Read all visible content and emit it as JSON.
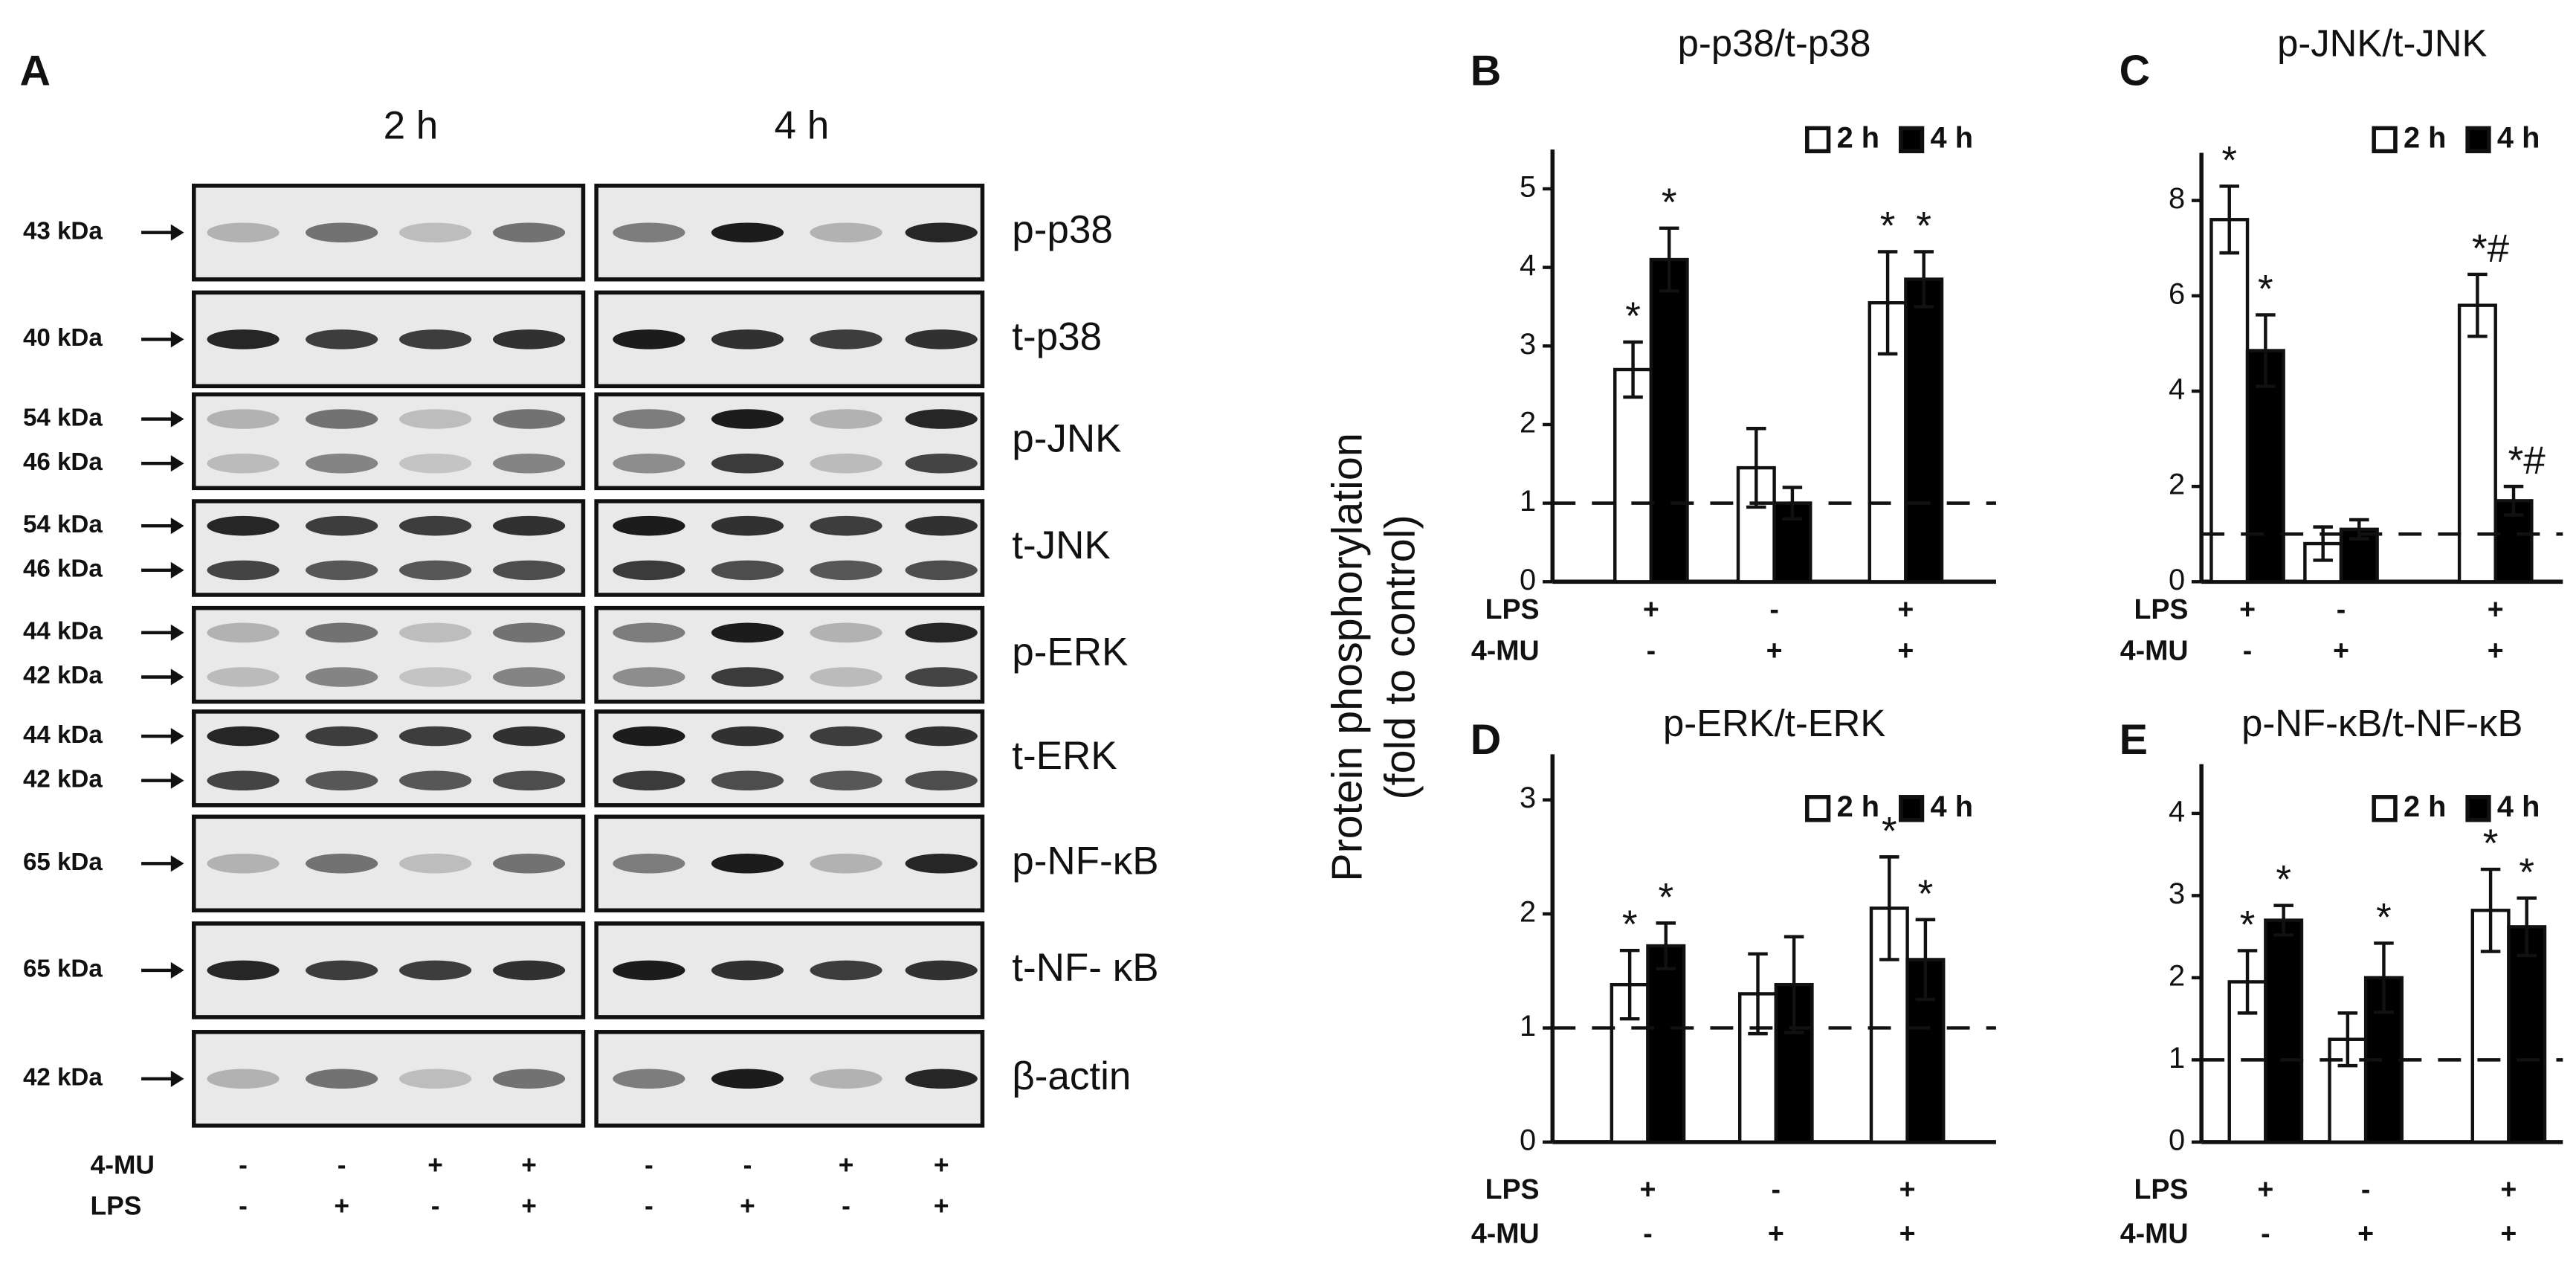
{
  "blot": {
    "label": "A",
    "time_points": [
      "2 h",
      "4 h"
    ],
    "rows": [
      {
        "markers": [
          "43 kDa"
        ],
        "name": "p-p38"
      },
      {
        "markers": [
          "40 kDa"
        ],
        "name": "t-p38"
      },
      {
        "markers": [
          "54 kDa",
          "46 kDa"
        ],
        "name": "p-JNK"
      },
      {
        "markers": [
          "54 kDa",
          "46 kDa"
        ],
        "name": "t-JNK"
      },
      {
        "markers": [
          "44 kDa",
          "42 kDa"
        ],
        "name": "p-ERK"
      },
      {
        "markers": [
          "44 kDa",
          "42 kDa"
        ],
        "name": "t-ERK"
      },
      {
        "markers": [
          "65 kDa"
        ],
        "name": "p-NF-κB"
      },
      {
        "markers": [
          "65 kDa"
        ],
        "name": "t-NF- κB"
      },
      {
        "markers": [
          "42 kDa"
        ],
        "name": "β-actin"
      }
    ],
    "treatments": [
      {
        "name": "4-MU",
        "signs": [
          "-",
          "-",
          "+",
          "+",
          "-",
          "-",
          "+",
          "+"
        ]
      },
      {
        "name": "LPS",
        "signs": [
          "-",
          "+",
          "-",
          "+",
          "-",
          "+",
          "-",
          "+"
        ]
      }
    ]
  },
  "y_axis_label": [
    "Protein phosphorylation",
    "(fold to control)"
  ],
  "chart_data": [
    {
      "type": "bar",
      "label": "B",
      "title": "p-p38/t-p38",
      "treatments": [
        {
          "name": "LPS",
          "signs": [
            "+",
            "-",
            "+"
          ]
        },
        {
          "name": "4-MU",
          "signs": [
            "-",
            "+",
            "+"
          ]
        }
      ],
      "series": [
        {
          "name": "2 h",
          "color": "#ffffff",
          "values": [
            2.7,
            1.45,
            3.55
          ],
          "errors": [
            0.35,
            0.5,
            0.65
          ],
          "sig": [
            "*",
            null,
            "*"
          ]
        },
        {
          "name": "4 h",
          "color": "#000000",
          "values": [
            4.1,
            1.0,
            3.85
          ],
          "errors": [
            0.4,
            0.2,
            0.35
          ],
          "sig": [
            "*",
            null,
            "*"
          ]
        }
      ],
      "ylim": [
        0,
        5.5
      ],
      "yticks": [
        0,
        1,
        2,
        3,
        4,
        5
      ],
      "ref_line": 1,
      "legend": "upper right",
      "grid": false
    },
    {
      "type": "bar",
      "label": "C",
      "title": "p-JNK/t-JNK",
      "treatments": [
        {
          "name": "LPS",
          "signs": [
            "+",
            "-",
            "+"
          ]
        },
        {
          "name": "4-MU",
          "signs": [
            "-",
            "+",
            "+"
          ]
        }
      ],
      "series": [
        {
          "name": "2 h",
          "color": "#ffffff",
          "values": [
            7.6,
            0.8,
            5.8
          ],
          "errors": [
            0.7,
            0.35,
            0.65
          ],
          "sig": [
            "*",
            null,
            "*#"
          ]
        },
        {
          "name": "4 h",
          "color": "#000000",
          "values": [
            4.85,
            1.1,
            1.7
          ],
          "errors": [
            0.75,
            0.2,
            0.3
          ],
          "sig": [
            "*",
            null,
            "*#"
          ]
        }
      ],
      "ylim": [
        0,
        9
      ],
      "yticks": [
        0,
        2,
        4,
        6,
        8
      ],
      "ref_line": 1,
      "legend": "upper right",
      "grid": false
    },
    {
      "type": "bar",
      "label": "D",
      "title": "p-ERK/t-ERK",
      "treatments": [
        {
          "name": "LPS",
          "signs": [
            "+",
            "-",
            "+"
          ]
        },
        {
          "name": "4-MU",
          "signs": [
            "-",
            "+",
            "+"
          ]
        }
      ],
      "series": [
        {
          "name": "2 h",
          "color": "#ffffff",
          "values": [
            1.38,
            1.3,
            2.05
          ],
          "errors": [
            0.3,
            0.35,
            0.45
          ],
          "sig": [
            "*",
            null,
            "*"
          ]
        },
        {
          "name": "4 h",
          "color": "#000000",
          "values": [
            1.72,
            1.38,
            1.6
          ],
          "errors": [
            0.2,
            0.42,
            0.35
          ],
          "sig": [
            "*",
            null,
            "*"
          ]
        }
      ],
      "ylim": [
        0,
        3.4
      ],
      "yticks": [
        0,
        1,
        2,
        3
      ],
      "ref_line": 1,
      "legend": "upper right",
      "grid": false
    },
    {
      "type": "bar",
      "label": "E",
      "title": "p-NF-κB/t-NF-κB",
      "treatments": [
        {
          "name": "LPS",
          "signs": [
            "+",
            "-",
            "+"
          ]
        },
        {
          "name": "4-MU",
          "signs": [
            "-",
            "+",
            "+"
          ]
        }
      ],
      "series": [
        {
          "name": "2 h",
          "color": "#ffffff",
          "values": [
            1.95,
            1.25,
            2.82
          ],
          "errors": [
            0.38,
            0.32,
            0.5
          ],
          "sig": [
            "*",
            null,
            "*"
          ]
        },
        {
          "name": "4 h",
          "color": "#000000",
          "values": [
            2.7,
            2.0,
            2.62
          ],
          "errors": [
            0.18,
            0.42,
            0.35
          ],
          "sig": [
            "*",
            "*",
            "*"
          ]
        }
      ],
      "ylim": [
        0,
        4.6
      ],
      "yticks": [
        0,
        1,
        2,
        3,
        4
      ],
      "ref_line": 1,
      "legend": "upper right",
      "grid": false
    }
  ]
}
